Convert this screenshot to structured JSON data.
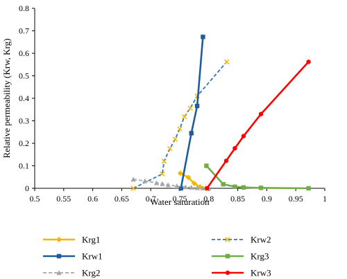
{
  "chart_data": {
    "type": "line",
    "title": "",
    "xlabel": "Water saturation",
    "ylabel": "Relative permeability (Krw, Krg)",
    "xlim": [
      0.5,
      1.0
    ],
    "ylim": [
      0,
      0.8
    ],
    "x_ticks": [
      "0.5",
      "0.55",
      "0.6",
      "0.65",
      "0.7",
      "0.75",
      "0.8",
      "0.85",
      "0.9",
      "0.95",
      "1"
    ],
    "y_ticks": [
      "0",
      "0.1",
      "0.2",
      "0.3",
      "0.4",
      "0.5",
      "0.6",
      "0.7",
      "0.8"
    ],
    "grid": false,
    "legend_position": "bottom",
    "series": [
      {
        "name": "Krg1",
        "color": "#f2b705",
        "dash": "solid",
        "marker": "diamond",
        "x": [
          0.751,
          0.765,
          0.775,
          0.785,
          0.795
        ],
        "y": [
          0.067,
          0.048,
          0.022,
          0.006,
          0.0
        ]
      },
      {
        "name": "Krw2",
        "color": "#2e75b6",
        "dash": "dashed",
        "marker": "x",
        "x": [
          0.67,
          0.72,
          0.723,
          0.733,
          0.742,
          0.75,
          0.758,
          0.768,
          0.78,
          0.831
        ],
        "y": [
          0.0,
          0.064,
          0.12,
          0.176,
          0.218,
          0.264,
          0.318,
          0.356,
          0.41,
          0.562
        ]
      },
      {
        "name": "Krw1",
        "color": "#1f5c99",
        "dash": "solid",
        "marker": "square",
        "x": [
          0.752,
          0.77,
          0.78,
          0.79
        ],
        "y": [
          0.0,
          0.245,
          0.366,
          0.673
        ]
      },
      {
        "name": "Krg3",
        "color": "#70ad47",
        "dash": "solid",
        "marker": "square",
        "x": [
          0.796,
          0.825,
          0.845,
          0.86,
          0.89,
          0.972
        ],
        "y": [
          0.1,
          0.018,
          0.007,
          0.004,
          0.002,
          0.0
        ]
      },
      {
        "name": "Krg2",
        "color": "#a6a6a6",
        "dash": "dashed",
        "marker": "triangle",
        "x": [
          0.67,
          0.69,
          0.71,
          0.72,
          0.73,
          0.745,
          0.76,
          0.77,
          0.78,
          0.79,
          0.8
        ],
        "y": [
          0.04,
          0.033,
          0.024,
          0.02,
          0.015,
          0.01,
          0.006,
          0.004,
          0.002,
          0.001,
          0.0
        ]
      },
      {
        "name": "Krw3",
        "color": "#ff0000",
        "dash": "solid",
        "marker": "circle",
        "x": [
          0.797,
          0.83,
          0.845,
          0.86,
          0.89,
          0.972
        ],
        "y": [
          0.0,
          0.122,
          0.178,
          0.232,
          0.33,
          0.562
        ]
      }
    ]
  }
}
